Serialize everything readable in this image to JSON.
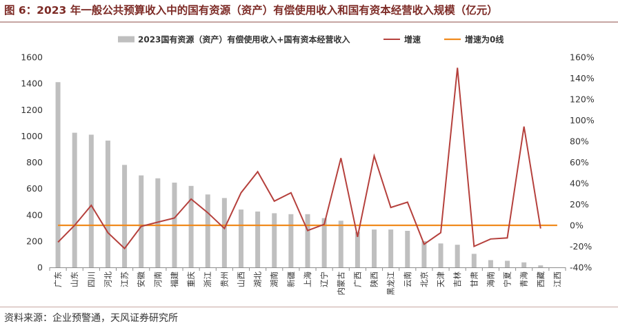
{
  "figure": {
    "title": "图 6：2023 年一般公共预算收入中的国有资源（资产）有偿使用收入和国有资本经营收入规模（亿元）",
    "source": "资料来源：企业预警通，天风证券研究所"
  },
  "chart_data": {
    "type": "bar",
    "title": "",
    "xlabel": "",
    "ylabel": "",
    "categories": [
      "广东",
      "山东",
      "四川",
      "河北",
      "江苏",
      "安徽",
      "河南",
      "福建",
      "重庆",
      "浙江",
      "贵州",
      "山西",
      "湖北",
      "湖南",
      "新疆",
      "上海",
      "辽宁",
      "内蒙古",
      "广西",
      "陕西",
      "黑龙江",
      "云南",
      "北京",
      "天津",
      "吉林",
      "甘肃",
      "海南",
      "宁夏",
      "青海",
      "西藏",
      "江西"
    ],
    "series": [
      {
        "name": "2023国有资源（资产）有偿使用收入+国有资本经营收入",
        "kind": "bar",
        "axis": "left",
        "color": "#bfbfbf",
        "values": [
          1410,
          1025,
          1010,
          965,
          780,
          700,
          678,
          645,
          620,
          555,
          528,
          440,
          425,
          412,
          405,
          405,
          375,
          355,
          270,
          288,
          288,
          278,
          200,
          182,
          172,
          103,
          55,
          50,
          38,
          15,
          0
        ]
      },
      {
        "name": "增速",
        "kind": "line",
        "axis": "right",
        "color": "#b5403c",
        "values": [
          -16,
          0,
          19,
          -7,
          -22,
          -1,
          3,
          7,
          25,
          12,
          -3,
          31,
          51,
          23,
          31,
          -5,
          1,
          64,
          -11,
          66,
          17,
          22,
          -18,
          -7,
          150,
          -20,
          -13,
          -12,
          94,
          -3,
          null
        ]
      },
      {
        "name": "增速为0线",
        "kind": "line",
        "axis": "right",
        "color": "#f08a1c",
        "values": [
          0,
          0,
          0,
          0,
          0,
          0,
          0,
          0,
          0,
          0,
          0,
          0,
          0,
          0,
          0,
          0,
          0,
          0,
          0,
          0,
          0,
          0,
          0,
          0,
          0,
          0,
          0,
          0,
          0,
          0,
          0
        ]
      }
    ],
    "y_left": {
      "ylim": [
        0,
        1600
      ],
      "ticks": [
        0,
        200,
        400,
        600,
        800,
        1000,
        1200,
        1400,
        1600
      ],
      "tick_labels": [
        "0",
        "200",
        "400",
        "600",
        "800",
        "1000",
        "1200",
        "1400",
        "1600"
      ]
    },
    "y_right": {
      "ylim": [
        -40,
        160
      ],
      "ticks": [
        -40,
        -20,
        0,
        20,
        40,
        60,
        80,
        100,
        120,
        140,
        160
      ],
      "tick_labels": [
        "-40%",
        "-20%",
        "0%",
        "20%",
        "40%",
        "60%",
        "80%",
        "100%",
        "120%",
        "140%",
        "160%"
      ]
    },
    "grid": false,
    "legend": "top"
  }
}
